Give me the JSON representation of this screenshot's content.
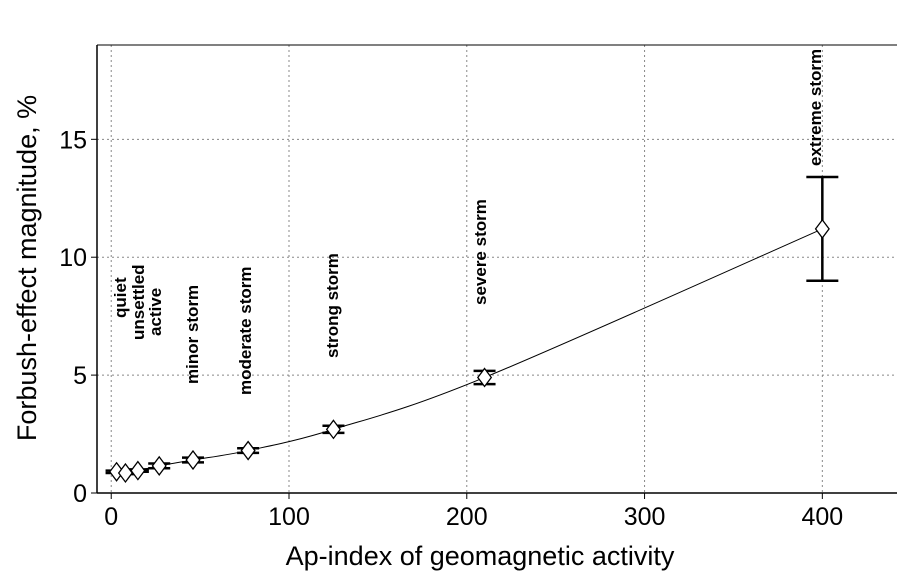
{
  "chart_data": {
    "type": "scatter",
    "xlabel": "Ap-index of geomagnetic activity",
    "ylabel": "Forbush-effect magnitude, %",
    "annotations": [
      "quiet",
      "unsettled",
      "active",
      "minor storm",
      "moderate storm",
      "strong storm",
      "severe storm",
      "extreme storm"
    ],
    "series": [
      {
        "color": "#000000",
        "x": [
          3,
          8,
          15,
          27,
          46,
          77,
          125,
          210,
          400
        ],
        "values": [
          0.9,
          0.85,
          0.95,
          1.15,
          1.4,
          1.8,
          2.7,
          4.9,
          11.2
        ],
        "errors": [
          0.05,
          0.05,
          0.05,
          0.1,
          0.1,
          0.1,
          0.15,
          0.28,
          2.2
        ]
      }
    ],
    "xlim": [
      -8,
      442
    ],
    "xticks": [
      0,
      100,
      200,
      300,
      400
    ],
    "ylim": [
      0,
      19
    ],
    "yticks": [
      0,
      5,
      10,
      15
    ],
    "grid": true
  }
}
